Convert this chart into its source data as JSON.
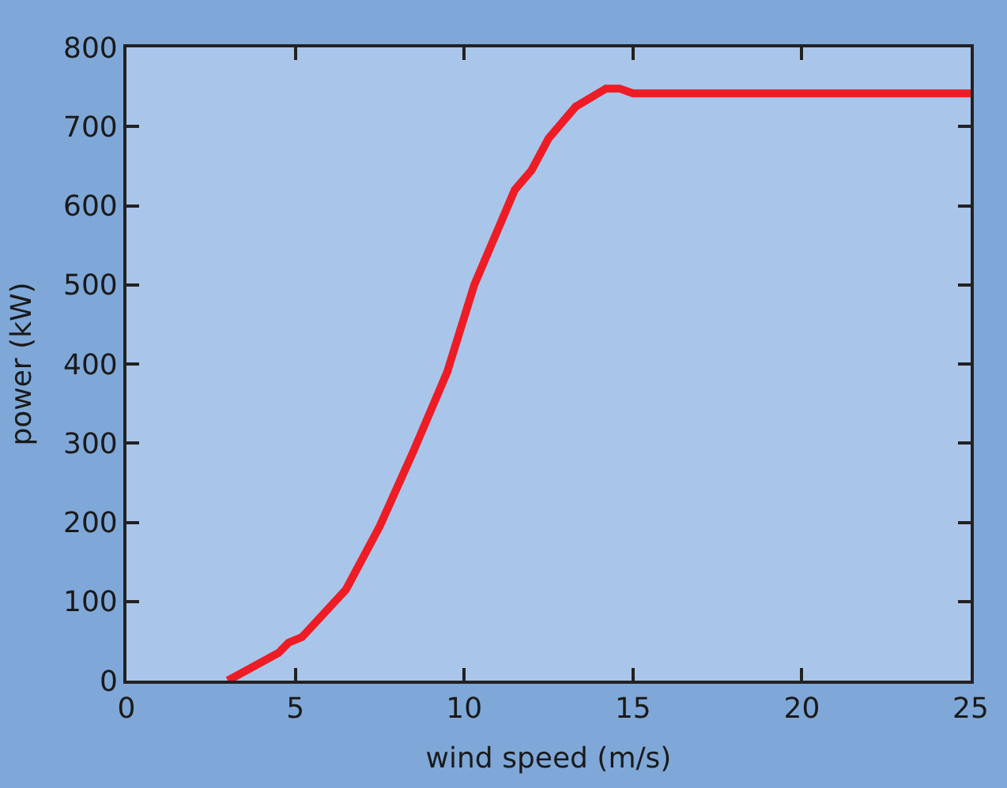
{
  "chart_data": {
    "type": "line",
    "xlabel": "wind speed (m/s)",
    "ylabel": "power (kW)",
    "x": [
      3,
      4.5,
      4.8,
      5.2,
      6.5,
      7.5,
      8.5,
      9.5,
      10.3,
      11.5,
      12,
      12.5,
      13.3,
      14.2,
      14.6,
      15,
      25
    ],
    "series": [
      {
        "color": "#ee1c25",
        "values": [
          0,
          35,
          48,
          55,
          115,
          195,
          290,
          390,
          500,
          620,
          645,
          685,
          725,
          748,
          748,
          742,
          742
        ]
      }
    ],
    "xlim": [
      0,
      25
    ],
    "xticks": [
      0,
      5,
      10,
      15,
      20,
      25
    ],
    "ylim": [
      0,
      800
    ],
    "yticks": [
      0,
      100,
      200,
      300,
      400,
      500,
      600,
      700,
      800
    ],
    "grid": false,
    "legend": false,
    "marker": "none",
    "line_style": "solid"
  }
}
